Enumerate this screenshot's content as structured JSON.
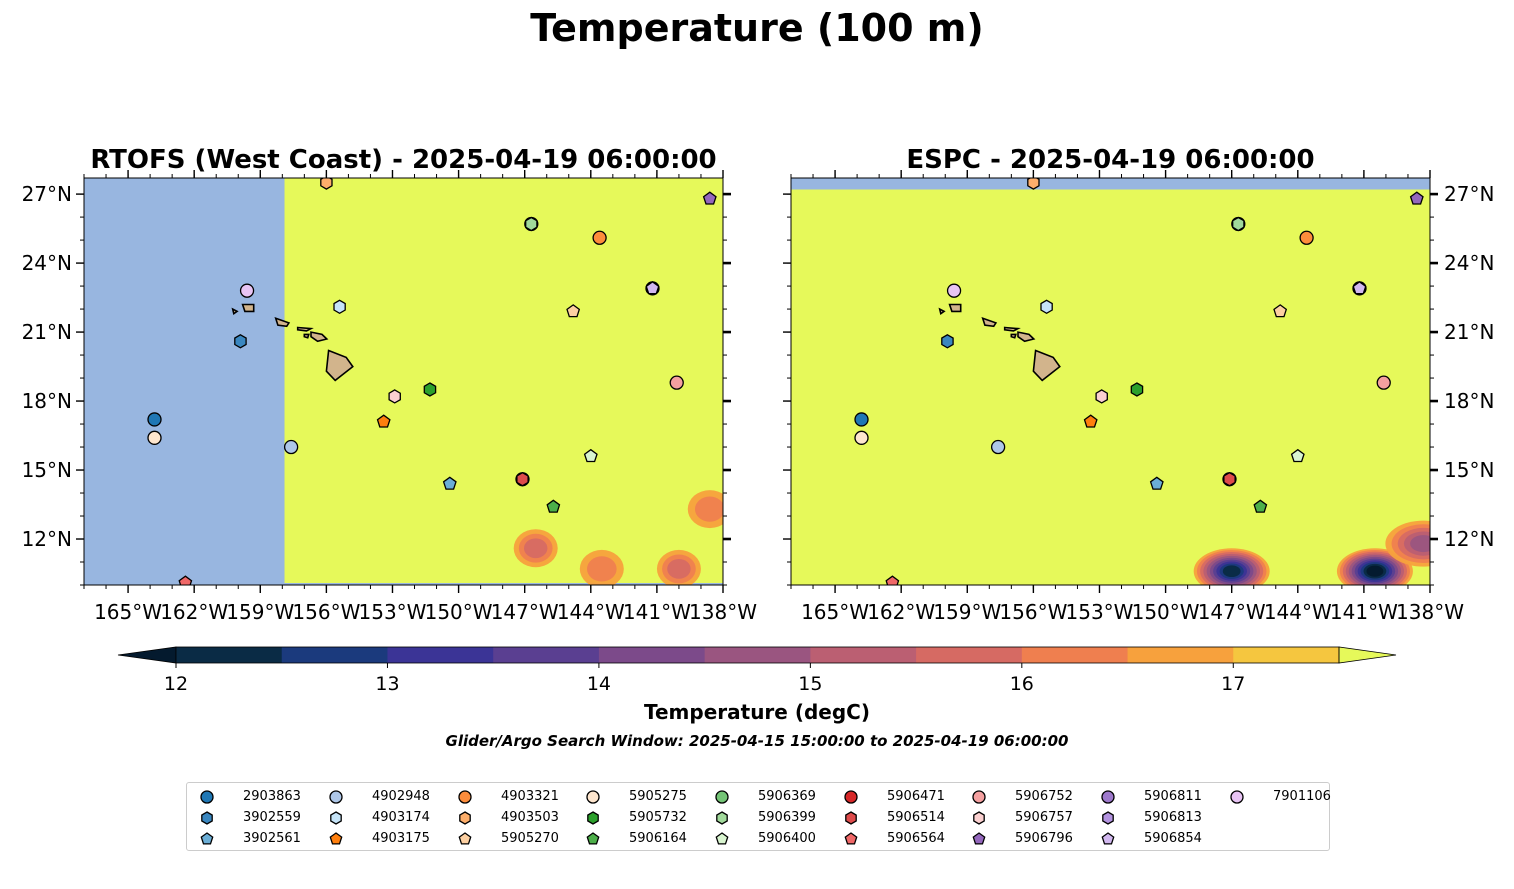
{
  "figure": {
    "suptitle": "Temperature (100 m)",
    "colorbar_label": "Temperature (degC)",
    "search_window": "Glider/Argo Search Window: 2025-04-15 15:00:00 to 2025-04-19 06:00:00",
    "colorbar_ticks": [
      "12",
      "13",
      "14",
      "15",
      "16",
      "17"
    ],
    "colorbar_range": [
      11.75,
      17.5
    ],
    "colorbar_levels": [
      12.0,
      12.5,
      13.0,
      13.5,
      14.0,
      14.5,
      15.0,
      15.5,
      16.0,
      16.5,
      17.0,
      17.5
    ],
    "colorbar_colors": [
      "#041a2e",
      "#0a2b45",
      "#1b3a7d",
      "#3b3496",
      "#5a3f91",
      "#7c4a8a",
      "#9a5580",
      "#bb5f72",
      "#d66a63",
      "#ef7f4f",
      "#f7a13d",
      "#f5c63f",
      "#e6f95a"
    ],
    "colors": {
      "ocean_mask": "#98b6e0",
      "land": "#d2b48c",
      "warm_field": "#e6f95a"
    }
  },
  "chart_data": [
    {
      "type": "heatmap",
      "title": "RTOFS (West Coast) - 2025-04-19 06:00:00",
      "xlim": [
        -167,
        -138
      ],
      "ylim": [
        10,
        27.7
      ],
      "xticks": [
        "165°W",
        "162°W",
        "159°W",
        "156°W",
        "153°W",
        "150°W",
        "147°W",
        "144°W",
        "141°W",
        "138°W"
      ],
      "yticks": [
        "27°N",
        "24°N",
        "21°N",
        "18°N",
        "15°N",
        "12°N"
      ],
      "ytick_side": "right",
      "model_domain_west_edge_lon": -157.9,
      "cool_patches_degC": [
        {
          "lon": -146.5,
          "lat": 11.6,
          "min_temp": 16.0
        },
        {
          "lon": -143.5,
          "lat": 10.7,
          "min_temp": 16.5
        },
        {
          "lon": -140.0,
          "lat": 10.7,
          "min_temp": 16.0
        },
        {
          "lon": -138.6,
          "lat": 13.3,
          "min_temp": 16.5
        }
      ]
    },
    {
      "type": "heatmap",
      "title": "ESPC - 2025-04-19 06:00:00",
      "xlim": [
        -167,
        -138
      ],
      "ylim": [
        10,
        27.7
      ],
      "xticks": [
        "165°W",
        "162°W",
        "159°W",
        "156°W",
        "153°W",
        "150°W",
        "147°W",
        "144°W",
        "141°W",
        "138°W"
      ],
      "yticks": [
        "27°N",
        "24°N",
        "21°N",
        "18°N",
        "15°N",
        "12°N"
      ],
      "ytick_side": "right",
      "model_domain_north_edge_lat": 27.2,
      "cool_patches_degC": [
        {
          "lon": -147.0,
          "lat": 10.6,
          "min_temp": 12.5
        },
        {
          "lon": -140.5,
          "lat": 10.6,
          "min_temp": 12.0
        },
        {
          "lon": -138.3,
          "lat": 11.8,
          "min_temp": 15.0
        }
      ]
    }
  ],
  "floats": [
    {
      "id": "2903863",
      "marker": "circle",
      "color": "#1f77b4",
      "lon": -163.8,
      "lat": 17.2
    },
    {
      "id": "3902559",
      "marker": "hexagon",
      "color": "#3a87c0",
      "lon": -159.9,
      "lat": 20.6
    },
    {
      "id": "3902561",
      "marker": "pentagon",
      "color": "#6baed6",
      "lon": -150.4,
      "lat": 14.4
    },
    {
      "id": "4902948",
      "marker": "circle",
      "color": "#aec7e8",
      "lon": -157.6,
      "lat": 16.0
    },
    {
      "id": "4903174",
      "marker": "hexagon",
      "color": "#c6e4f8",
      "lon": -155.4,
      "lat": 22.1
    },
    {
      "id": "4903175",
      "marker": "pentagon",
      "color": "#ff7f0e",
      "lon": -153.4,
      "lat": 17.1
    },
    {
      "id": "4903321",
      "marker": "circle",
      "color": "#fd8d3c",
      "lon": -143.6,
      "lat": 25.1
    },
    {
      "id": "4903503",
      "marker": "hexagon",
      "color": "#fdae6b",
      "lon": -156.0,
      "lat": 27.5
    },
    {
      "id": "5905270",
      "marker": "pentagon",
      "color": "#fdd0a2",
      "lon": -144.8,
      "lat": 21.9
    },
    {
      "id": "5905275",
      "marker": "circle",
      "color": "#fee6ce",
      "lon": -163.8,
      "lat": 16.4
    },
    {
      "id": "5905732",
      "marker": "hexagon",
      "color": "#2ca02c",
      "lon": -151.3,
      "lat": 18.5
    },
    {
      "id": "5906164",
      "marker": "pentagon",
      "color": "#4daf4a",
      "lon": -145.7,
      "lat": 13.4
    },
    {
      "id": "5906369",
      "marker": "circle",
      "color": "#74c476",
      "lon": -146.7,
      "lat": 25.7
    },
    {
      "id": "5906399",
      "marker": "hexagon",
      "color": "#a1d99b",
      "lon": -146.7,
      "lat": 25.7
    },
    {
      "id": "5906400",
      "marker": "pentagon",
      "color": "#d9f5d0",
      "lon": -144.0,
      "lat": 15.6
    },
    {
      "id": "5906471",
      "marker": "circle",
      "color": "#d62728",
      "lon": -147.1,
      "lat": 14.6
    },
    {
      "id": "5906514",
      "marker": "hexagon",
      "color": "#de4b4b",
      "lon": -147.1,
      "lat": 14.6
    },
    {
      "id": "5906564",
      "marker": "pentagon",
      "color": "#f06868",
      "lon": -162.4,
      "lat": 10.1
    },
    {
      "id": "5906752",
      "marker": "circle",
      "color": "#f4a0a0",
      "lon": -140.1,
      "lat": 18.8
    },
    {
      "id": "5906757",
      "marker": "hexagon",
      "color": "#fbd0d0",
      "lon": -152.9,
      "lat": 18.2
    },
    {
      "id": "5906796",
      "marker": "pentagon",
      "color": "#9467bd",
      "lon": -138.6,
      "lat": 26.8
    },
    {
      "id": "5906811",
      "marker": "circle",
      "color": "#9e79cc",
      "lon": -141.2,
      "lat": 22.9
    },
    {
      "id": "5906813",
      "marker": "hexagon",
      "color": "#b393e0",
      "lon": -141.2,
      "lat": 22.9
    },
    {
      "id": "5906854",
      "marker": "pentagon",
      "color": "#d2b8f0",
      "lon": -141.2,
      "lat": 22.9
    },
    {
      "id": "7901106",
      "marker": "circle",
      "color": "#e8c4f4",
      "lon": -159.6,
      "lat": 22.8
    }
  ]
}
